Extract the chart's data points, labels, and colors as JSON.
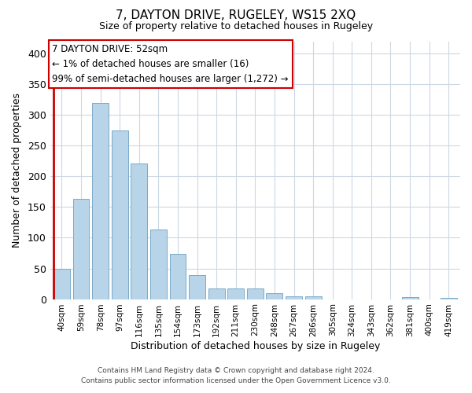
{
  "title": "7, DAYTON DRIVE, RUGELEY, WS15 2XQ",
  "subtitle": "Size of property relative to detached houses in Rugeley",
  "xlabel": "Distribution of detached houses by size in Rugeley",
  "ylabel": "Number of detached properties",
  "bins": [
    "40sqm",
    "59sqm",
    "78sqm",
    "97sqm",
    "116sqm",
    "135sqm",
    "154sqm",
    "173sqm",
    "192sqm",
    "211sqm",
    "230sqm",
    "248sqm",
    "267sqm",
    "286sqm",
    "305sqm",
    "324sqm",
    "343sqm",
    "362sqm",
    "381sqm",
    "400sqm",
    "419sqm"
  ],
  "values": [
    49,
    163,
    319,
    275,
    221,
    113,
    74,
    39,
    18,
    18,
    17,
    10,
    5,
    4,
    0,
    0,
    0,
    0,
    3,
    0,
    2
  ],
  "bar_color": "#b8d4e8",
  "bar_edge_color": "#7aaac8",
  "highlight_color": "#cc0000",
  "ylim": [
    0,
    420
  ],
  "yticks": [
    0,
    50,
    100,
    150,
    200,
    250,
    300,
    350,
    400
  ],
  "annotation_title": "7 DAYTON DRIVE: 52sqm",
  "annotation_line1": "← 1% of detached houses are smaller (16)",
  "annotation_line2": "99% of semi-detached houses are larger (1,272) →",
  "annotation_box_color": "#ffffff",
  "annotation_box_edge": "#cc0000",
  "footer1": "Contains HM Land Registry data © Crown copyright and database right 2024.",
  "footer2": "Contains public sector information licensed under the Open Government Licence v3.0.",
  "background_color": "#ffffff",
  "grid_color": "#ccd8e4"
}
